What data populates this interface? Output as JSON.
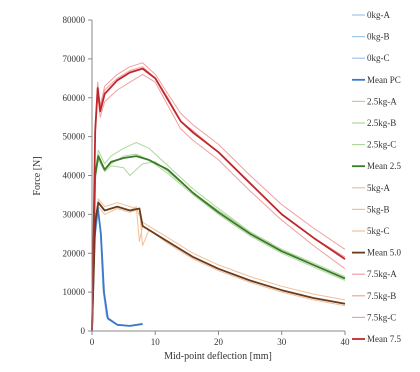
{
  "chart_data": {
    "type": "line",
    "title": "",
    "xlabel": "Mid-point deflection [mm]",
    "ylabel": "Force [N]",
    "xlim": [
      0,
      40
    ],
    "ylim": [
      0,
      80000
    ],
    "x_ticks": [
      0,
      10,
      20,
      30,
      40
    ],
    "y_ticks": [
      0,
      10000,
      20000,
      30000,
      40000,
      50000,
      60000,
      70000,
      80000
    ],
    "x_tick_labels": [
      "0",
      "10",
      "20",
      "30",
      "40"
    ],
    "y_tick_labels": [
      "0",
      "10000",
      "20000",
      "30000",
      "40000",
      "50000",
      "60000",
      "70000",
      "80000"
    ],
    "grid": false,
    "legend_position": "right",
    "series": [
      {
        "name": "0kg-A",
        "color": "#9ec5ea",
        "mean": false,
        "points": [
          [
            0,
            0
          ],
          [
            0.4,
            25000
          ],
          [
            0.9,
            33000
          ],
          [
            1.3,
            26000
          ],
          [
            1.8,
            10000
          ],
          [
            2.4,
            3500
          ],
          [
            4,
            1600
          ],
          [
            6,
            1200
          ],
          [
            8,
            1700
          ]
        ]
      },
      {
        "name": "0kg-B",
        "color": "#9ec5ea",
        "mean": false,
        "points": [
          [
            0,
            0
          ],
          [
            0.4,
            23000
          ],
          [
            1,
            30500
          ],
          [
            1.4,
            24000
          ],
          [
            1.9,
            9000
          ],
          [
            2.5,
            3000
          ],
          [
            4,
            1500
          ],
          [
            6,
            1300
          ],
          [
            8,
            1800
          ]
        ]
      },
      {
        "name": "0kg-C",
        "color": "#9ec5ea",
        "mean": false,
        "points": [
          [
            0,
            0
          ],
          [
            0.4,
            26000
          ],
          [
            0.9,
            32500
          ],
          [
            1.3,
            27000
          ],
          [
            1.7,
            11000
          ],
          [
            2.3,
            3600
          ],
          [
            4,
            1700
          ],
          [
            6,
            1400
          ],
          [
            8,
            2000
          ]
        ]
      },
      {
        "name": "Mean PC",
        "color": "#3c78c8",
        "mean": true,
        "points": [
          [
            0,
            0
          ],
          [
            0.4,
            24000
          ],
          [
            0.9,
            32000
          ],
          [
            1.4,
            25000
          ],
          [
            1.9,
            10000
          ],
          [
            2.5,
            3300
          ],
          [
            4,
            1600
          ],
          [
            6,
            1300
          ],
          [
            8,
            1800
          ]
        ]
      },
      {
        "name": "2.5kg-A",
        "color": "#aed99b",
        "mean": false,
        "points": [
          [
            0,
            0
          ],
          [
            0.5,
            40000
          ],
          [
            1,
            45500
          ],
          [
            2,
            41500
          ],
          [
            3,
            43000
          ],
          [
            5,
            45000
          ],
          [
            7,
            45500
          ],
          [
            9,
            44000
          ],
          [
            12,
            40500
          ],
          [
            16,
            35000
          ],
          [
            20,
            30000
          ],
          [
            25,
            24500
          ],
          [
            30,
            20000
          ],
          [
            35,
            16500
          ],
          [
            40,
            13000
          ]
        ]
      },
      {
        "name": "2.5kg-B",
        "color": "#aed99b",
        "mean": false,
        "points": [
          [
            0,
            0
          ],
          [
            0.5,
            39000
          ],
          [
            1,
            44000
          ],
          [
            2,
            41000
          ],
          [
            3,
            42500
          ],
          [
            5,
            42000
          ],
          [
            6,
            40000
          ],
          [
            8,
            43000
          ],
          [
            10,
            43500
          ],
          [
            12,
            41000
          ],
          [
            16,
            35500
          ],
          [
            20,
            31000
          ],
          [
            25,
            25500
          ],
          [
            30,
            21000
          ],
          [
            35,
            17500
          ],
          [
            40,
            14000
          ]
        ]
      },
      {
        "name": "2.5kg-C",
        "color": "#aed99b",
        "mean": false,
        "points": [
          [
            0,
            0
          ],
          [
            0.5,
            41000
          ],
          [
            1,
            46500
          ],
          [
            2,
            43000
          ],
          [
            3,
            45000
          ],
          [
            5,
            47000
          ],
          [
            7,
            48500
          ],
          [
            9,
            47000
          ],
          [
            12,
            42500
          ],
          [
            16,
            36500
          ],
          [
            20,
            31500
          ],
          [
            25,
            25500
          ],
          [
            30,
            21000
          ],
          [
            35,
            17000
          ],
          [
            40,
            13500
          ]
        ]
      },
      {
        "name": "Mean 2.5",
        "color": "#3a7a28",
        "mean": true,
        "points": [
          [
            0,
            0
          ],
          [
            0.5,
            40000
          ],
          [
            1,
            45000
          ],
          [
            2,
            41500
          ],
          [
            3,
            43500
          ],
          [
            5,
            44500
          ],
          [
            7,
            45000
          ],
          [
            9,
            44000
          ],
          [
            12,
            41500
          ],
          [
            16,
            35500
          ],
          [
            20,
            30500
          ],
          [
            25,
            25000
          ],
          [
            30,
            20500
          ],
          [
            35,
            17000
          ],
          [
            40,
            13500
          ]
        ]
      },
      {
        "name": "5kg-A",
        "color": "#f0c09b",
        "mean": false,
        "points": [
          [
            0,
            0
          ],
          [
            0.5,
            28000
          ],
          [
            1,
            33500
          ],
          [
            2,
            31000
          ],
          [
            4,
            32000
          ],
          [
            6,
            31000
          ],
          [
            7,
            32000
          ],
          [
            7.5,
            23000
          ],
          [
            8,
            27000
          ],
          [
            12,
            23000
          ],
          [
            16,
            19000
          ],
          [
            20,
            16000
          ],
          [
            25,
            13000
          ],
          [
            30,
            10500
          ],
          [
            35,
            8500
          ],
          [
            40,
            7000
          ]
        ]
      },
      {
        "name": "5kg-B",
        "color": "#f0c09b",
        "mean": false,
        "points": [
          [
            0,
            0
          ],
          [
            0.5,
            27000
          ],
          [
            1,
            32000
          ],
          [
            2,
            30000
          ],
          [
            4,
            31500
          ],
          [
            6,
            30500
          ],
          [
            7.5,
            31500
          ],
          [
            8,
            22000
          ],
          [
            9,
            26000
          ],
          [
            12,
            22500
          ],
          [
            16,
            18500
          ],
          [
            20,
            15500
          ],
          [
            25,
            12500
          ],
          [
            30,
            10000
          ],
          [
            35,
            8000
          ],
          [
            40,
            6500
          ]
        ]
      },
      {
        "name": "5kg-C",
        "color": "#f0c09b",
        "mean": false,
        "points": [
          [
            0,
            0
          ],
          [
            0.5,
            29000
          ],
          [
            1,
            34000
          ],
          [
            2,
            32000
          ],
          [
            4,
            33000
          ],
          [
            6,
            32000
          ],
          [
            7,
            31500
          ],
          [
            8,
            28000
          ],
          [
            12,
            24000
          ],
          [
            16,
            20000
          ],
          [
            20,
            17000
          ],
          [
            25,
            14000
          ],
          [
            30,
            11500
          ],
          [
            35,
            9500
          ],
          [
            40,
            8000
          ]
        ]
      },
      {
        "name": "Mean 5.0",
        "color": "#6b3a1a",
        "mean": true,
        "points": [
          [
            0,
            0
          ],
          [
            0.5,
            28000
          ],
          [
            1,
            33000
          ],
          [
            2,
            31000
          ],
          [
            4,
            32000
          ],
          [
            6,
            31000
          ],
          [
            7.5,
            31500
          ],
          [
            8,
            27000
          ],
          [
            12,
            23000
          ],
          [
            16,
            19000
          ],
          [
            20,
            16000
          ],
          [
            25,
            13000
          ],
          [
            30,
            10500
          ],
          [
            35,
            8500
          ],
          [
            40,
            7000
          ]
        ]
      },
      {
        "name": "7.5kg-A",
        "color": "#f0a0a0",
        "mean": false,
        "points": [
          [
            0,
            0
          ],
          [
            0.5,
            52000
          ],
          [
            0.9,
            63000
          ],
          [
            1.3,
            57000
          ],
          [
            2,
            62000
          ],
          [
            4,
            65000
          ],
          [
            6,
            67000
          ],
          [
            8,
            68000
          ],
          [
            10,
            65000
          ],
          [
            12,
            60000
          ],
          [
            14,
            54000
          ],
          [
            16,
            51500
          ],
          [
            20,
            46000
          ],
          [
            25,
            38000
          ],
          [
            30,
            30000
          ],
          [
            35,
            24000
          ],
          [
            40,
            19000
          ]
        ]
      },
      {
        "name": "7.5kg-B",
        "color": "#f0a0a0",
        "mean": false,
        "points": [
          [
            0,
            0
          ],
          [
            0.5,
            50000
          ],
          [
            0.9,
            61000
          ],
          [
            1.3,
            55000
          ],
          [
            2,
            59000
          ],
          [
            4,
            62000
          ],
          [
            6,
            64000
          ],
          [
            8,
            66000
          ],
          [
            10,
            64000
          ],
          [
            12,
            58000
          ],
          [
            14,
            52000
          ],
          [
            16,
            49000
          ],
          [
            20,
            44000
          ],
          [
            25,
            36000
          ],
          [
            30,
            28500
          ],
          [
            35,
            22000
          ],
          [
            40,
            16000
          ]
        ]
      },
      {
        "name": "7.5kg-C",
        "color": "#f0a0a0",
        "mean": false,
        "points": [
          [
            0,
            0
          ],
          [
            0.5,
            53000
          ],
          [
            0.9,
            64000
          ],
          [
            1.3,
            58000
          ],
          [
            2,
            63000
          ],
          [
            4,
            66000
          ],
          [
            6,
            68000
          ],
          [
            8,
            69000
          ],
          [
            10,
            66000
          ],
          [
            12,
            61000
          ],
          [
            14,
            56000
          ],
          [
            16,
            53000
          ],
          [
            20,
            48000
          ],
          [
            25,
            40000
          ],
          [
            30,
            32500
          ],
          [
            35,
            26500
          ],
          [
            40,
            21000
          ]
        ]
      },
      {
        "name": "Mean 7.5",
        "color": "#c0262a",
        "mean": true,
        "points": [
          [
            0,
            0
          ],
          [
            0.5,
            51500
          ],
          [
            0.9,
            62500
          ],
          [
            1.3,
            56500
          ],
          [
            2,
            61000
          ],
          [
            4,
            64500
          ],
          [
            6,
            66500
          ],
          [
            8,
            67500
          ],
          [
            10,
            65000
          ],
          [
            12,
            59500
          ],
          [
            14,
            54000
          ],
          [
            16,
            51000
          ],
          [
            20,
            46000
          ],
          [
            25,
            38000
          ],
          [
            30,
            30000
          ],
          [
            35,
            24000
          ],
          [
            40,
            18500
          ]
        ]
      }
    ]
  }
}
